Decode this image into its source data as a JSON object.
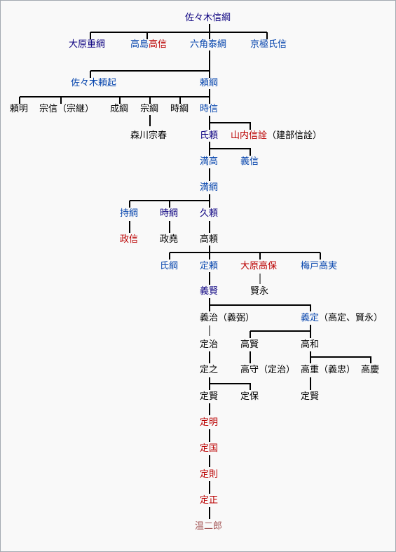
{
  "colors": {
    "link": "#0645ad",
    "new": "#ba0000",
    "visited": "#0b0080",
    "brown": "#a55858",
    "plain": "#000000",
    "line": "#000000",
    "background": "#f9f9f9",
    "border": "#a2a9b1"
  },
  "nodes": {
    "sasaki_nobutsuna": [
      {
        "t": "佐々木信綱",
        "c": "visited"
      }
    ],
    "ohara_shigetsuna": [
      {
        "t": "大原重綱",
        "c": "visited"
      }
    ],
    "takashima_takanobu": [
      {
        "t": "高島",
        "c": "link"
      },
      {
        "t": "高信",
        "c": "new"
      }
    ],
    "rokkaku_yasutsuna": [
      {
        "t": "六角泰綱",
        "c": "link"
      }
    ],
    "kyogoku_ujinobu": [
      {
        "t": "京極氏信",
        "c": "link"
      }
    ],
    "sasaki_yorioki": [
      {
        "t": "佐々木頼起",
        "c": "link"
      }
    ],
    "yoritsuna": [
      {
        "t": "頼綱",
        "c": "link"
      }
    ],
    "yoriaki": [
      {
        "t": "頼明",
        "c": "plain"
      }
    ],
    "munenobu": [
      {
        "t": "宗信（宗継）",
        "c": "plain"
      }
    ],
    "naritsuna": [
      {
        "t": "成綱",
        "c": "plain"
      }
    ],
    "munetsuna": [
      {
        "t": "宗綱",
        "c": "plain"
      }
    ],
    "tokitsuna": [
      {
        "t": "時綱",
        "c": "plain"
      }
    ],
    "tokinobu": [
      {
        "t": "時信",
        "c": "link"
      }
    ],
    "morikawa_muneharu": [
      {
        "t": "森川宗春",
        "c": "plain"
      }
    ],
    "ujiyori": [
      {
        "t": "氏頼",
        "c": "visited"
      }
    ],
    "yamanouchi_nobuaki": [
      {
        "t": "山内信詮",
        "c": "new"
      },
      {
        "t": "（建部信詮）",
        "c": "plain"
      }
    ],
    "mitsutaka": [
      {
        "t": "満高",
        "c": "link"
      }
    ],
    "yoshinobu": [
      {
        "t": "義信",
        "c": "link"
      }
    ],
    "mitsutsuna": [
      {
        "t": "満綱",
        "c": "link"
      }
    ],
    "mochitsuna": [
      {
        "t": "持綱",
        "c": "link"
      }
    ],
    "tokitsuna2": [
      {
        "t": "時綱",
        "c": "visited"
      }
    ],
    "hisayori": [
      {
        "t": "久頼",
        "c": "visited"
      }
    ],
    "masanobu": [
      {
        "t": "政信",
        "c": "new"
      }
    ],
    "masataka": [
      {
        "t": "政堯",
        "c": "plain"
      }
    ],
    "takayori": [
      {
        "t": "高頼",
        "c": "plain"
      }
    ],
    "ujitsuna": [
      {
        "t": "氏綱",
        "c": "link"
      }
    ],
    "sadayori": [
      {
        "t": "定頼",
        "c": "link"
      }
    ],
    "ohara_takayasu": [
      {
        "t": "大原高保",
        "c": "new"
      }
    ],
    "umedo_takazane": [
      {
        "t": "梅戸高実",
        "c": "link"
      }
    ],
    "yoshikata": [
      {
        "t": "義賢",
        "c": "visited"
      }
    ],
    "kataei": [
      {
        "t": "賢永",
        "c": "plain"
      }
    ],
    "yoshiharu": [
      {
        "t": "義治（義弼）",
        "c": "plain"
      }
    ],
    "yoshisada": [
      {
        "t": "義定",
        "c": "link"
      },
      {
        "t": "（高定、賢永）",
        "c": "plain"
      }
    ],
    "sadaharu": [
      {
        "t": "定治",
        "c": "plain"
      }
    ],
    "takakata": [
      {
        "t": "高賢",
        "c": "plain"
      }
    ],
    "takakazu": [
      {
        "t": "高和",
        "c": "plain"
      }
    ],
    "sadayuki": [
      {
        "t": "定之",
        "c": "plain"
      }
    ],
    "takamori": [
      {
        "t": "高守（定治）",
        "c": "plain"
      }
    ],
    "takashige": [
      {
        "t": "高重（義忠）",
        "c": "plain"
      }
    ],
    "takayoshi": [
      {
        "t": "高慶",
        "c": "plain"
      }
    ],
    "sadakata": [
      {
        "t": "定賢",
        "c": "plain"
      }
    ],
    "sadayasu": [
      {
        "t": "定保",
        "c": "plain"
      }
    ],
    "sadakata2": [
      {
        "t": "定賢",
        "c": "plain"
      }
    ],
    "sadaaki": [
      {
        "t": "定明",
        "c": "new"
      }
    ],
    "sadakuni": [
      {
        "t": "定国",
        "c": "new"
      }
    ],
    "sadanori": [
      {
        "t": "定則",
        "c": "new"
      }
    ],
    "sadamasa": [
      {
        "t": "定正",
        "c": "new"
      }
    ],
    "onjiro": [
      {
        "t": "温二郎",
        "c": "brown"
      }
    ]
  }
}
